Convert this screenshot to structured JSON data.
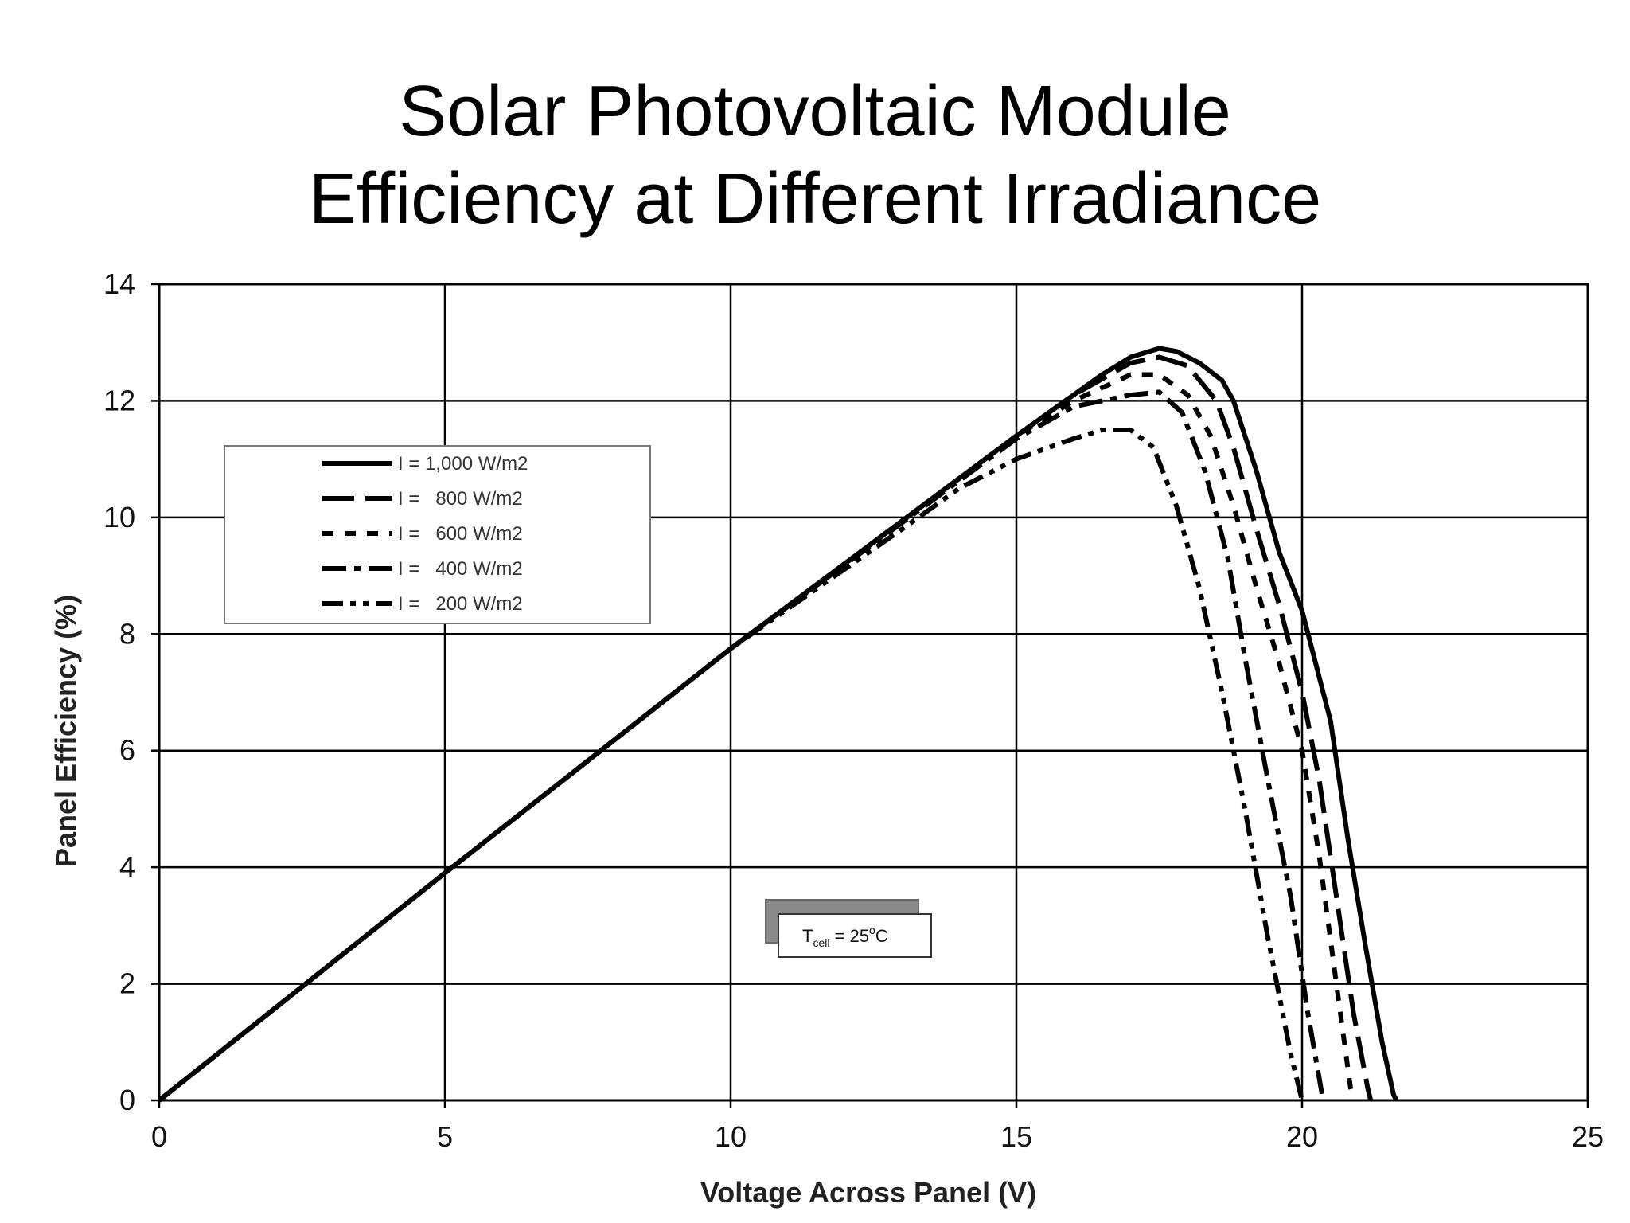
{
  "chart_data": {
    "type": "line",
    "title": "Solar Photovoltaic Module",
    "subtitle": "Efficiency at Different Irradiance",
    "xlabel": "Voltage Across Panel (V)",
    "ylabel": "Panel Efficiency (%)",
    "xlim": [
      0,
      25
    ],
    "ylim": [
      0,
      14
    ],
    "x_ticks": [
      "0",
      "5",
      "10",
      "15",
      "20",
      "25"
    ],
    "y_ticks": [
      "0",
      "2",
      "4",
      "6",
      "8",
      "10",
      "12",
      "14"
    ],
    "grid": true,
    "legend_position": "upper-left",
    "annotation": {
      "prefix": "T",
      "subscript": "cell",
      "middle": " = 25",
      "superscript": "o",
      "suffix": "C"
    },
    "series": [
      {
        "name": "I = 1,000 W/m2",
        "style": "solid",
        "x": [
          0,
          5,
          10,
          15,
          16,
          16.5,
          17,
          17.5,
          17.8,
          18.2,
          18.6,
          18.8,
          19.2,
          19.6,
          20.0,
          20.5,
          20.8,
          21.1,
          21.4,
          21.6,
          21.65
        ],
        "y": [
          0,
          3.9,
          7.75,
          11.4,
          12.1,
          12.45,
          12.75,
          12.9,
          12.85,
          12.65,
          12.35,
          12.0,
          10.8,
          9.4,
          8.4,
          6.5,
          4.5,
          2.7,
          1.0,
          0.1,
          0
        ]
      },
      {
        "name": "I =   800 W/m2",
        "style": "long-dash",
        "x": [
          0,
          5,
          10,
          15,
          16,
          17,
          17.5,
          18.0,
          18.5,
          18.8,
          19.2,
          19.6,
          20.0,
          20.3,
          20.6,
          20.9,
          21.15,
          21.2
        ],
        "y": [
          0,
          3.9,
          7.75,
          11.4,
          12.1,
          12.65,
          12.75,
          12.6,
          12.0,
          11.2,
          9.8,
          8.5,
          7.0,
          5.5,
          3.5,
          1.5,
          0.2,
          0
        ]
      },
      {
        "name": "I =   600 W/m2",
        "style": "short-dash",
        "x": [
          0,
          5,
          10,
          15,
          16,
          17,
          17.5,
          18.0,
          18.4,
          18.8,
          19.2,
          19.6,
          20.0,
          20.3,
          20.6,
          20.85,
          20.9
        ],
        "y": [
          0,
          3.9,
          7.75,
          11.4,
          12.0,
          12.45,
          12.45,
          12.1,
          11.4,
          10.2,
          8.8,
          7.5,
          6.0,
          4.2,
          2.0,
          0.2,
          0
        ]
      },
      {
        "name": "I =   400 W/m2",
        "style": "dash-dot",
        "x": [
          0,
          5,
          10,
          15,
          16,
          17,
          17.5,
          17.9,
          18.3,
          18.7,
          19.0,
          19.4,
          19.8,
          20.1,
          20.35,
          20.4
        ],
        "y": [
          0,
          3.9,
          7.75,
          11.35,
          11.9,
          12.1,
          12.15,
          11.8,
          10.8,
          9.3,
          7.6,
          5.5,
          3.5,
          1.5,
          0.1,
          0
        ]
      },
      {
        "name": "I =   200 W/m2",
        "style": "dash-dot-dot",
        "x": [
          0,
          5,
          10,
          13,
          14,
          15,
          16,
          16.5,
          17,
          17.4,
          17.8,
          18.2,
          18.6,
          19.0,
          19.4,
          19.8,
          20.0
        ],
        "y": [
          0,
          3.9,
          7.75,
          9.8,
          10.5,
          11.0,
          11.35,
          11.5,
          11.5,
          11.2,
          10.2,
          8.8,
          7.0,
          5.0,
          2.8,
          0.8,
          0
        ]
      }
    ]
  }
}
